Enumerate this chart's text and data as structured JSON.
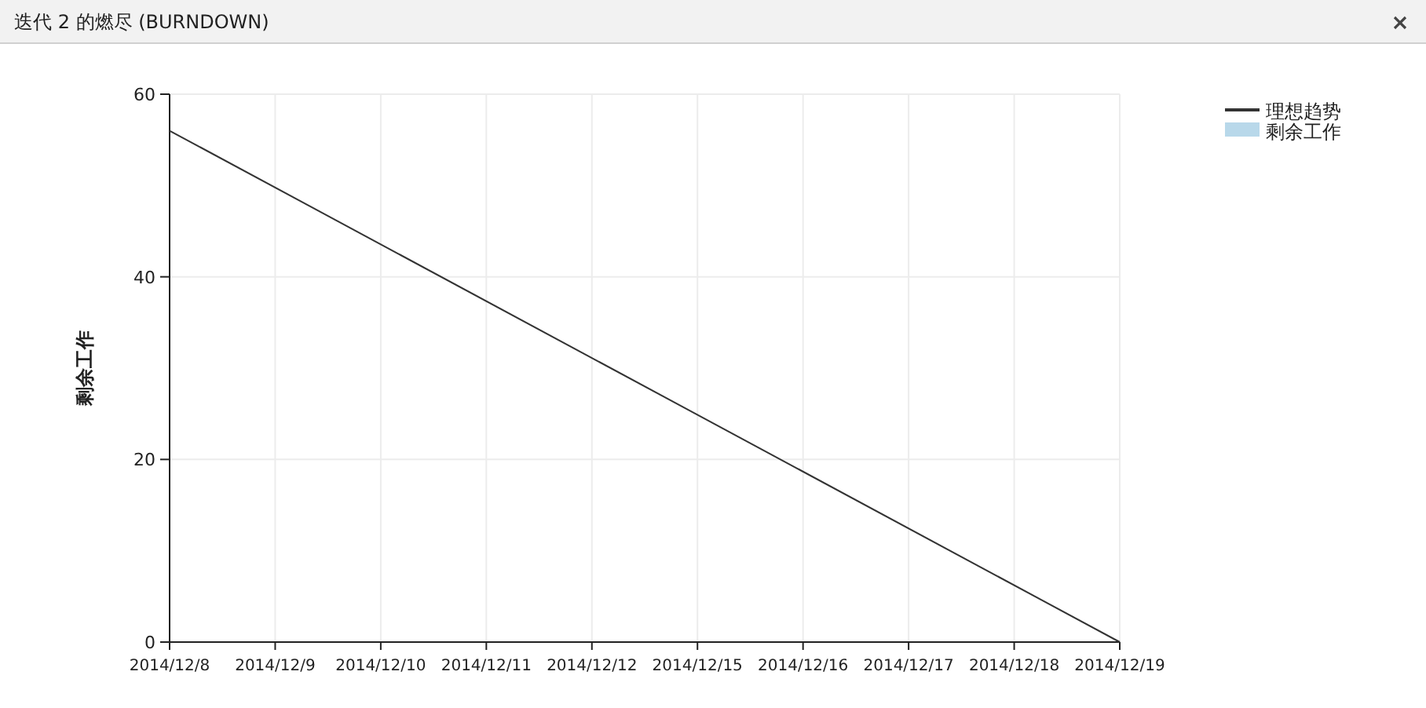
{
  "chart_data": {
    "type": "line",
    "title": "迭代 2 的燃尽 (BURNDOWN)",
    "ylabel": "剩余工作",
    "categories": [
      "2014/12/8",
      "2014/12/9",
      "2014/12/10",
      "2014/12/11",
      "2014/12/12",
      "2014/12/15",
      "2014/12/16",
      "2014/12/17",
      "2014/12/18",
      "2014/12/19"
    ],
    "series": [
      {
        "name": "理想趋势",
        "color": "#333333",
        "values": [
          56,
          null,
          null,
          null,
          null,
          null,
          null,
          null,
          null,
          0
        ]
      },
      {
        "name": "剩余工作",
        "type": "area",
        "color": "#b8d8ea",
        "values": [
          null,
          null,
          null,
          null,
          null,
          null,
          null,
          null,
          null,
          null
        ]
      }
    ],
    "ylim": [
      0,
      60
    ],
    "yticks": [
      0,
      20,
      40,
      60
    ],
    "grid": true,
    "legend": "top right",
    "marker": "none",
    "line_style": "solid"
  }
}
